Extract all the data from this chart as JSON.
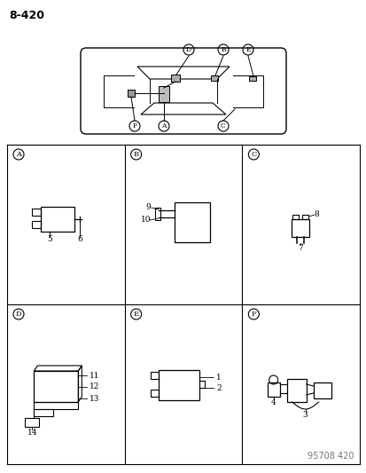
{
  "page_number": "8-420",
  "watermark": "95708 420",
  "background_color": "#ffffff",
  "line_color": "#000000",
  "text_color": "#000000",
  "circle_labels": [
    "A",
    "B",
    "C",
    "D",
    "E",
    "F"
  ],
  "part_numbers": {
    "A": [
      "5",
      "6"
    ],
    "B": [
      "9",
      "10"
    ],
    "C": [
      "7",
      "8"
    ],
    "D": [
      "11",
      "12",
      "13",
      "14"
    ],
    "E": [
      "1",
      "2"
    ],
    "F": [
      "3",
      "4"
    ]
  }
}
